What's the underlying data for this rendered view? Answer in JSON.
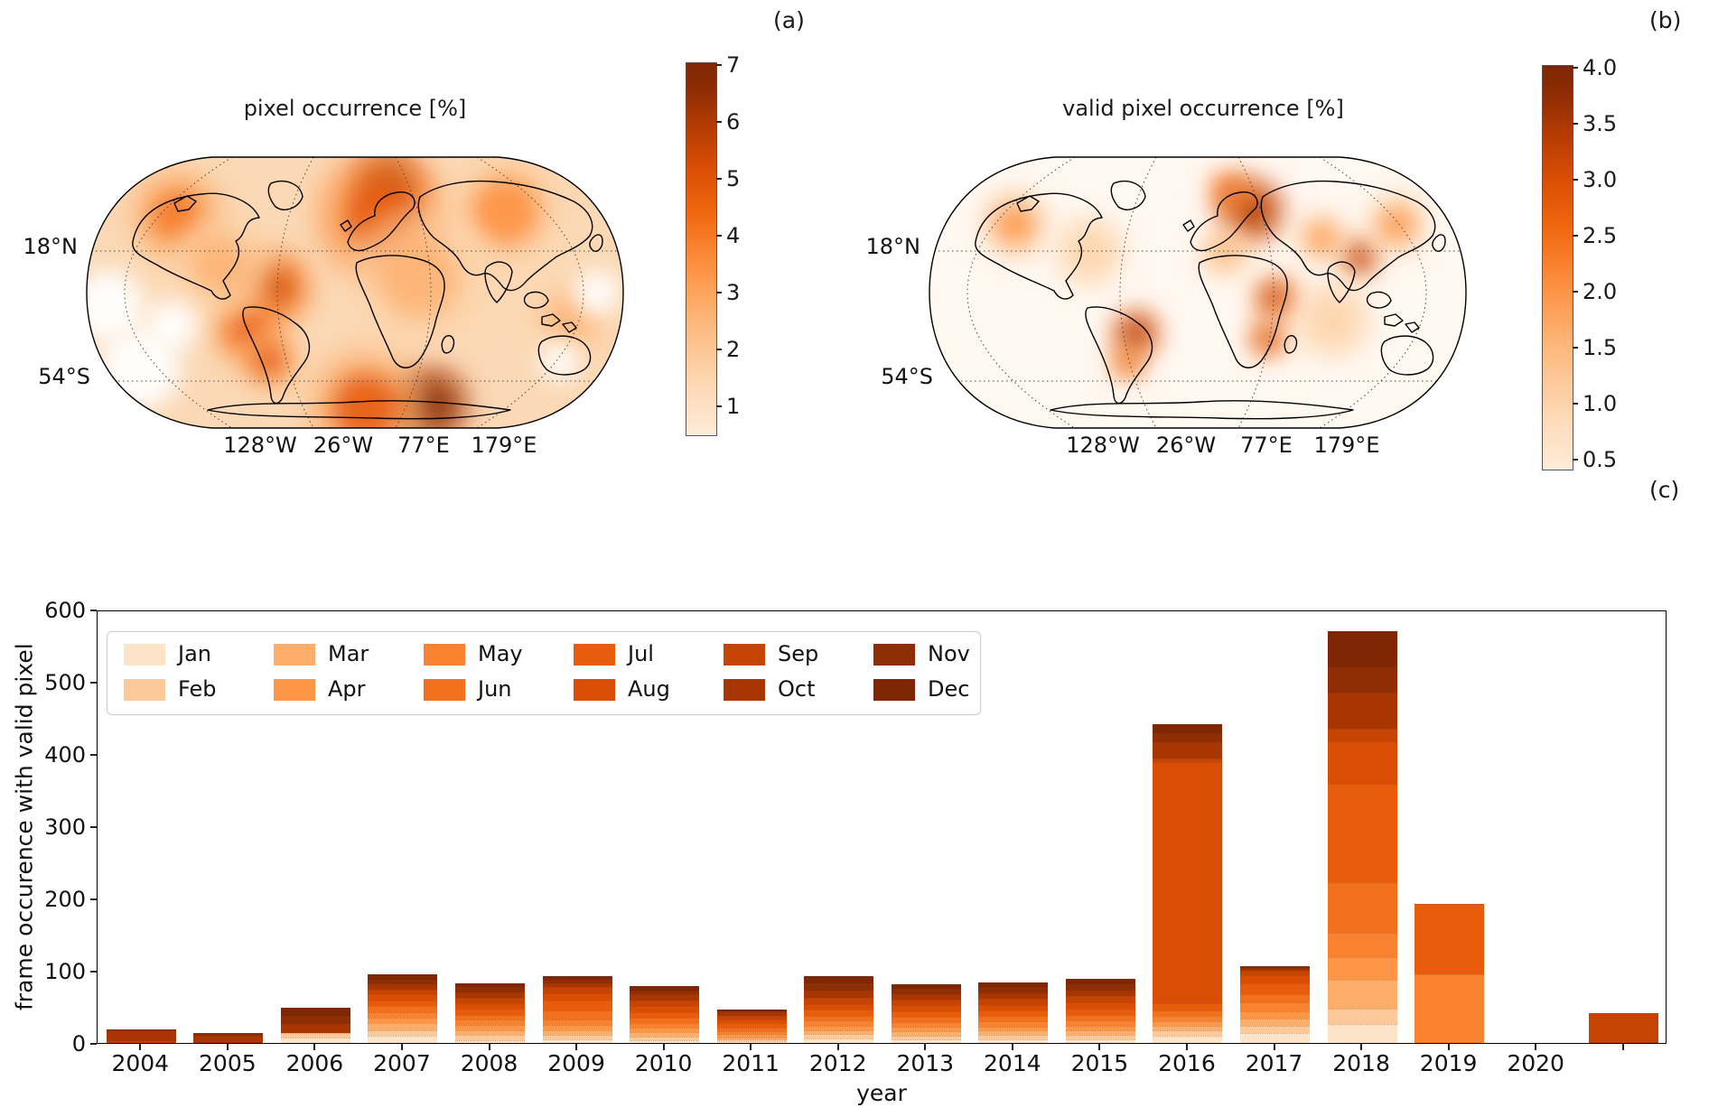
{
  "panel_labels": {
    "a": "(a)",
    "b": "(b)",
    "c": "(c)"
  },
  "map_a": {
    "title": "pixel occurrence [%]",
    "lat_labels": [
      "18°N",
      "54°S"
    ],
    "lon_labels": [
      "128°W",
      "26°W",
      "77°E",
      "179°E"
    ],
    "colorbar_ticks": [
      "7",
      "6",
      "5",
      "4",
      "3",
      "2",
      "1"
    ]
  },
  "map_b": {
    "title": "valid pixel occurrence [%]",
    "lat_labels": [
      "18°N",
      "54°S"
    ],
    "lon_labels": [
      "128°W",
      "26°W",
      "77°E",
      "179°E"
    ],
    "colorbar_ticks": [
      "4.0",
      "3.5",
      "3.0",
      "2.5",
      "2.0",
      "1.5",
      "1.0",
      "0.5"
    ]
  },
  "bar_panel": {
    "ylabel": "frame occurence with valid pixel",
    "xlabel": "year",
    "ytick_labels": [
      "0",
      "100",
      "200",
      "300",
      "400",
      "500",
      "600"
    ]
  },
  "chart_data": [
    {
      "type": "heatmap",
      "panel": "a",
      "title": "pixel occurrence [%]",
      "projection": "Robinson",
      "colorbar": {
        "vmin": 0.5,
        "vmax": 7,
        "ticks": [
          1,
          2,
          3,
          4,
          5,
          6,
          7
        ],
        "colormap": "Oranges"
      },
      "gridline_labels": {
        "lat": [
          "18°N",
          "54°S"
        ],
        "lon": [
          "128°W",
          "26°W",
          "77°E",
          "179°E"
        ]
      },
      "hotspots": [
        {
          "x": 0.56,
          "y": 0.11,
          "r": 40,
          "level": 0.95
        },
        {
          "x": 0.55,
          "y": 0.22,
          "r": 75,
          "level": 0.5
        },
        {
          "x": 0.35,
          "y": 0.48,
          "r": 45,
          "level": 0.55
        },
        {
          "x": 0.3,
          "y": 0.63,
          "r": 40,
          "level": 0.5
        },
        {
          "x": 0.34,
          "y": 0.75,
          "r": 35,
          "level": 0.45
        },
        {
          "x": 0.64,
          "y": 0.91,
          "r": 45,
          "level": 1.0
        },
        {
          "x": 0.52,
          "y": 0.92,
          "r": 70,
          "level": 0.45
        },
        {
          "x": 0.17,
          "y": 0.22,
          "r": 55,
          "level": 0.4
        },
        {
          "x": 0.78,
          "y": 0.2,
          "r": 70,
          "level": 0.28
        },
        {
          "x": 0.62,
          "y": 0.45,
          "r": 80,
          "level": 0.15
        },
        {
          "x": 0.9,
          "y": 0.6,
          "r": 50,
          "level": 0.18
        },
        {
          "x": 0.25,
          "y": 0.4,
          "r": 60,
          "level": 0.18
        }
      ],
      "data_gaps": [
        {
          "x": 0.04,
          "y": 0.55,
          "r": 40
        },
        {
          "x": 0.1,
          "y": 0.78,
          "r": 45
        },
        {
          "x": 0.16,
          "y": 0.62,
          "r": 28
        },
        {
          "x": 0.95,
          "y": 0.5,
          "r": 25
        },
        {
          "x": 0.88,
          "y": 0.75,
          "r": 22
        }
      ],
      "base_wash": "#fbd9b6"
    },
    {
      "type": "heatmap",
      "panel": "b",
      "title": "valid pixel occurrence [%]",
      "projection": "Robinson",
      "colorbar": {
        "vmin": 0.3,
        "vmax": 4.0,
        "ticks": [
          0.5,
          1.0,
          1.5,
          2.0,
          2.5,
          3.0,
          3.5,
          4.0
        ],
        "colormap": "Oranges"
      },
      "gridline_labels": {
        "lat": [
          "18°N",
          "54°S"
        ],
        "lon": [
          "128°W",
          "26°W",
          "77°E",
          "179°E"
        ]
      },
      "hotspots": [
        {
          "x": 0.6,
          "y": 0.2,
          "r": 38,
          "level": 0.8
        },
        {
          "x": 0.56,
          "y": 0.13,
          "r": 25,
          "level": 0.5
        },
        {
          "x": 0.8,
          "y": 0.37,
          "r": 22,
          "level": 0.75
        },
        {
          "x": 0.645,
          "y": 0.52,
          "r": 26,
          "level": 0.7
        },
        {
          "x": 0.63,
          "y": 0.67,
          "r": 22,
          "level": 0.6
        },
        {
          "x": 0.385,
          "y": 0.65,
          "r": 28,
          "level": 0.75
        },
        {
          "x": 0.37,
          "y": 0.76,
          "r": 20,
          "level": 0.5
        },
        {
          "x": 0.16,
          "y": 0.25,
          "r": 40,
          "level": 0.32
        },
        {
          "x": 0.87,
          "y": 0.25,
          "r": 35,
          "level": 0.28
        },
        {
          "x": 0.73,
          "y": 0.3,
          "r": 30,
          "level": 0.28
        },
        {
          "x": 0.3,
          "y": 0.35,
          "r": 40,
          "level": 0.1
        },
        {
          "x": 0.75,
          "y": 0.6,
          "r": 45,
          "level": 0.12
        },
        {
          "x": 0.55,
          "y": 0.35,
          "r": 30,
          "level": 0.15
        }
      ],
      "data_gaps": [],
      "base_wash": "#fff8f1"
    },
    {
      "type": "bar",
      "panel": "c",
      "stacked": true,
      "categories": [
        "2004",
        "2005",
        "2006",
        "2007",
        "2008",
        "2009",
        "2010",
        "2011",
        "2012",
        "2013",
        "2014",
        "2015",
        "2016",
        "2017",
        "2018",
        "2019",
        "2020",
        ""
      ],
      "xlabel": "year",
      "ylabel": "frame occurence with valid pixel",
      "ylim": [
        0,
        600
      ],
      "yticks": [
        0,
        100,
        200,
        300,
        400,
        500,
        600
      ],
      "legend_position": "upper left",
      "legend_columns": [
        [
          "Jan",
          "Feb"
        ],
        [
          "Mar",
          "Apr"
        ],
        [
          "May",
          "Jun"
        ],
        [
          "Jul",
          "Aug"
        ],
        [
          "Sep",
          "Oct"
        ],
        [
          "Nov",
          "Dec"
        ]
      ],
      "series": [
        {
          "name": "Jan",
          "color": "#fde3c8",
          "values": [
            0,
            0,
            8,
            10,
            4,
            5,
            4,
            2,
            6,
            5,
            5,
            5,
            10,
            14,
            26,
            0,
            0,
            0
          ]
        },
        {
          "name": "Feb",
          "color": "#fdc998",
          "values": [
            0,
            0,
            6,
            8,
            7,
            6,
            5,
            3,
            6,
            5,
            6,
            6,
            8,
            10,
            22,
            0,
            0,
            0
          ]
        },
        {
          "name": "Mar",
          "color": "#fdae6b",
          "values": [
            0,
            0,
            0,
            9,
            7,
            7,
            6,
            3,
            6,
            6,
            6,
            6,
            6,
            10,
            39,
            0,
            0,
            0
          ]
        },
        {
          "name": "Apr",
          "color": "#fd9647",
          "values": [
            0,
            0,
            0,
            8,
            7,
            7,
            6,
            4,
            6,
            6,
            6,
            7,
            6,
            10,
            32,
            0,
            0,
            0
          ]
        },
        {
          "name": "May",
          "color": "#f98230",
          "values": [
            0,
            0,
            0,
            8,
            7,
            8,
            7,
            4,
            7,
            7,
            7,
            7,
            7,
            12,
            33,
            95,
            0,
            0
          ]
        },
        {
          "name": "Jun",
          "color": "#f1701b",
          "values": [
            0,
            0,
            0,
            8,
            7,
            12,
            7,
            5,
            7,
            7,
            7,
            8,
            8,
            12,
            70,
            0,
            0,
            0
          ]
        },
        {
          "name": "Jul",
          "color": "#e85c0c",
          "values": [
            0,
            0,
            0,
            8,
            8,
            14,
            8,
            6,
            8,
            8,
            8,
            8,
            10,
            14,
            137,
            98,
            0,
            0
          ]
        },
        {
          "name": "Aug",
          "color": "#d94e04",
          "values": [
            0,
            0,
            0,
            8,
            8,
            10,
            8,
            6,
            8,
            8,
            8,
            9,
            334,
            12,
            58,
            0,
            0,
            0
          ]
        },
        {
          "name": "Sep",
          "color": "#c64403",
          "values": [
            3,
            0,
            0,
            7,
            8,
            8,
            8,
            5,
            8,
            8,
            8,
            9,
            5,
            6,
            18,
            0,
            0,
            41
          ]
        },
        {
          "name": "Oct",
          "color": "#a83603",
          "values": [
            13,
            10,
            12,
            7,
            7,
            6,
            8,
            4,
            10,
            8,
            8,
            8,
            22,
            3,
            50,
            0,
            0,
            0
          ]
        },
        {
          "name": "Nov",
          "color": "#8f2d04",
          "values": [
            3,
            4,
            12,
            7,
            7,
            5,
            6,
            2,
            11,
            7,
            8,
            8,
            13,
            2,
            35,
            0,
            0,
            0
          ]
        },
        {
          "name": "Dec",
          "color": "#7f2704",
          "values": [
            0,
            0,
            11,
            7,
            6,
            5,
            6,
            2,
            9,
            6,
            7,
            8,
            12,
            1,
            50,
            0,
            0,
            0
          ]
        }
      ]
    }
  ]
}
